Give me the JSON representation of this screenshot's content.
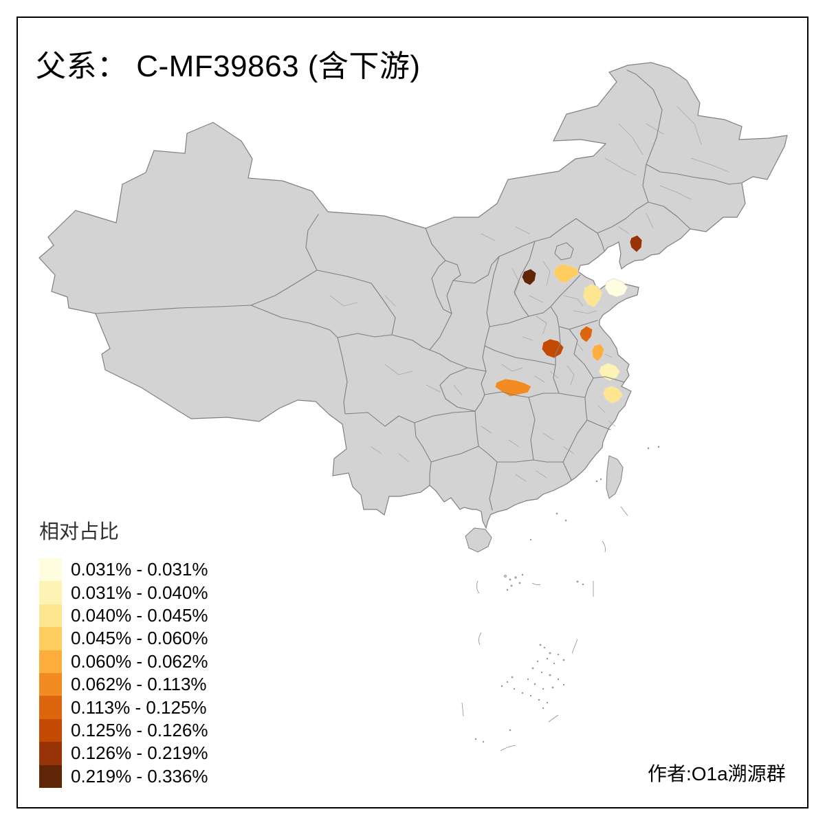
{
  "title": {
    "text": "父系： C-MF39863 (含下游)"
  },
  "legend": {
    "title": "相对占比",
    "classes": [
      {
        "label": "0.031% - 0.031%",
        "color": "#FFFDE0"
      },
      {
        "label": "0.031% - 0.040%",
        "color": "#FDF3B4"
      },
      {
        "label": "0.040% - 0.045%",
        "color": "#FEE691"
      },
      {
        "label": "0.045% - 0.060%",
        "color": "#FECC5F"
      },
      {
        "label": "0.060% - 0.062%",
        "color": "#FDAE3D"
      },
      {
        "label": "0.062% - 0.113%",
        "color": "#F28B22"
      },
      {
        "label": "0.113% - 0.125%",
        "color": "#DC650E"
      },
      {
        "label": "0.125% - 0.126%",
        "color": "#C44A03"
      },
      {
        "label": "0.126% - 0.219%",
        "color": "#973306"
      },
      {
        "label": "0.219% - 0.336%",
        "color": "#602507"
      }
    ]
  },
  "credit": {
    "text": "作者:O1a溯源群"
  },
  "map": {
    "base_fill": "#d3d3d3",
    "boundary_color": "#7f7f7f",
    "prefecture_boundary_color": "#a8a8a8",
    "sea_color": "#ffffff",
    "regions": [
      {
        "id": "r1",
        "class_index": 0
      },
      {
        "id": "r2",
        "class_index": 1
      },
      {
        "id": "r3",
        "class_index": 2
      },
      {
        "id": "r4",
        "class_index": 2
      },
      {
        "id": "r5",
        "class_index": 3
      },
      {
        "id": "r6",
        "class_index": 4
      },
      {
        "id": "r7",
        "class_index": 5
      },
      {
        "id": "r8",
        "class_index": 6
      },
      {
        "id": "r9",
        "class_index": 7
      },
      {
        "id": "r10",
        "class_index": 8
      },
      {
        "id": "r11",
        "class_index": 9
      }
    ]
  },
  "chart_data": {
    "type": "heatmap",
    "title": "父系： C-MF39863 (含下游)",
    "legend_title": "相对占比",
    "bins": [
      "0.031% - 0.031%",
      "0.031% - 0.040%",
      "0.040% - 0.045%",
      "0.045% - 0.060%",
      "0.060% - 0.062%",
      "0.062% - 0.113%",
      "0.113% - 0.125%",
      "0.125% - 0.126%",
      "0.126% - 0.219%",
      "0.219% - 0.336%"
    ],
    "colors": [
      "#FFFDE0",
      "#FDF3B4",
      "#FEE691",
      "#FECC5F",
      "#FDAE3D",
      "#F28B22",
      "#DC650E",
      "#C44A03",
      "#973306",
      "#602507"
    ],
    "regions": [
      {
        "id": "r1",
        "bin": "0.031% - 0.031%"
      },
      {
        "id": "r2",
        "bin": "0.031% - 0.040%"
      },
      {
        "id": "r3",
        "bin": "0.040% - 0.045%"
      },
      {
        "id": "r4",
        "bin": "0.040% - 0.045%"
      },
      {
        "id": "r5",
        "bin": "0.045% - 0.060%"
      },
      {
        "id": "r6",
        "bin": "0.060% - 0.062%"
      },
      {
        "id": "r7",
        "bin": "0.062% - 0.113%"
      },
      {
        "id": "r8",
        "bin": "0.113% - 0.125%"
      },
      {
        "id": "r9",
        "bin": "0.125% - 0.126%"
      },
      {
        "id": "r10",
        "bin": "0.126% - 0.219%"
      },
      {
        "id": "r11",
        "bin": "0.219% - 0.336%"
      }
    ],
    "legend_position": "bottom-left",
    "annotations": [
      "作者:O1a溯源群"
    ]
  }
}
